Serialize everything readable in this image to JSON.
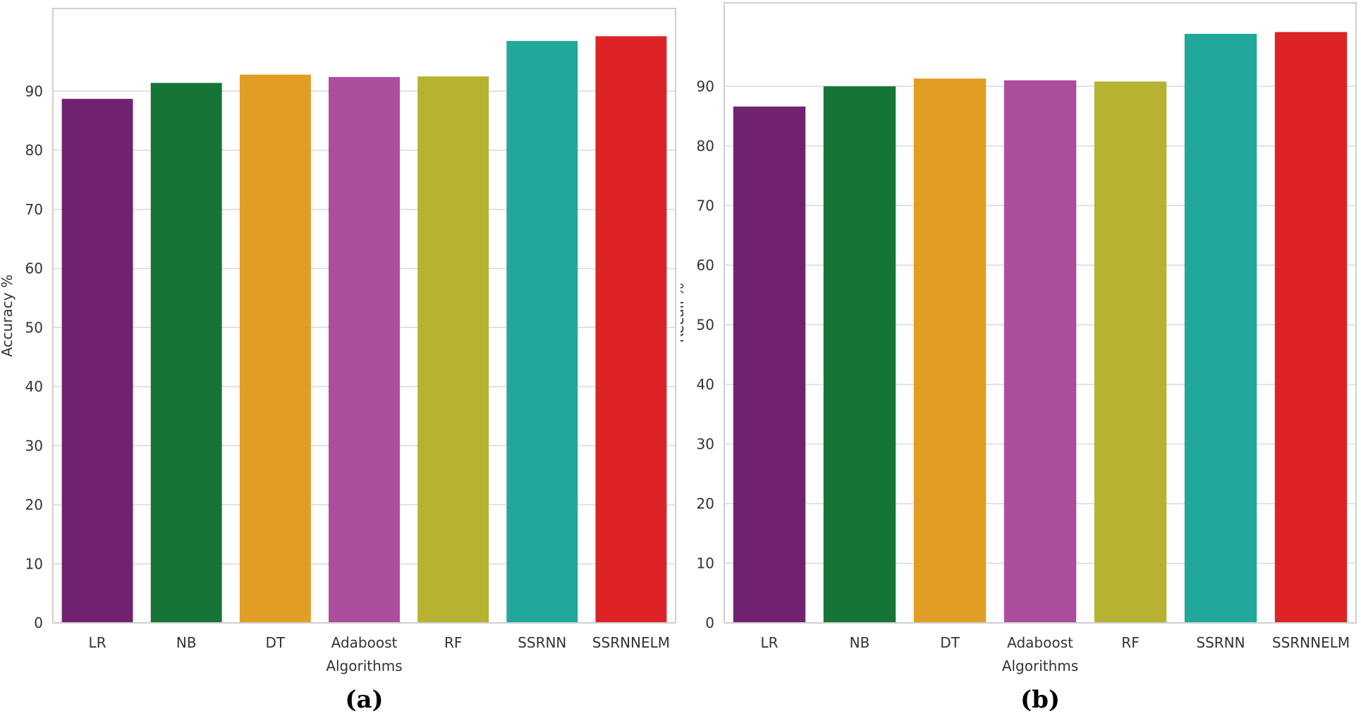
{
  "chart_data": [
    {
      "type": "bar",
      "categories": [
        "LR",
        "NB",
        "DT",
        "Adaboost",
        "RF",
        "SSRNN",
        "SSRNNELM"
      ],
      "values": [
        88.7,
        91.4,
        92.8,
        92.4,
        92.5,
        98.5,
        99.3
      ],
      "colors": [
        "#6f236f",
        "#157537",
        "#e19d24",
        "#ad4d9e",
        "#b7b232",
        "#21a89b",
        "#dc2326"
      ],
      "xlabel": "Algorithms",
      "ylabel": "Accuracy %",
      "yticks": [
        "0",
        "10",
        "20",
        "30",
        "40",
        "50",
        "60",
        "70",
        "80",
        "90"
      ],
      "ylim": [
        0,
        104
      ],
      "grid": "horizontal",
      "panel_label": "(a)"
    },
    {
      "type": "bar",
      "categories": [
        "LR",
        "NB",
        "DT",
        "Adaboost",
        "RF",
        "SSRNN",
        "SSRNNELM"
      ],
      "values": [
        86.6,
        90.0,
        91.3,
        91.0,
        90.8,
        98.8,
        99.1
      ],
      "colors": [
        "#6f236f",
        "#157537",
        "#e19d24",
        "#ad4d9e",
        "#b7b232",
        "#21a89b",
        "#dc2326"
      ],
      "xlabel": "Algorithms",
      "ylabel": "Recall %",
      "yticks": [
        "0",
        "10",
        "20",
        "30",
        "40",
        "50",
        "60",
        "70",
        "80",
        "90"
      ],
      "ylim": [
        0,
        104
      ],
      "grid": "horizontal",
      "panel_label": "(b)"
    }
  ]
}
